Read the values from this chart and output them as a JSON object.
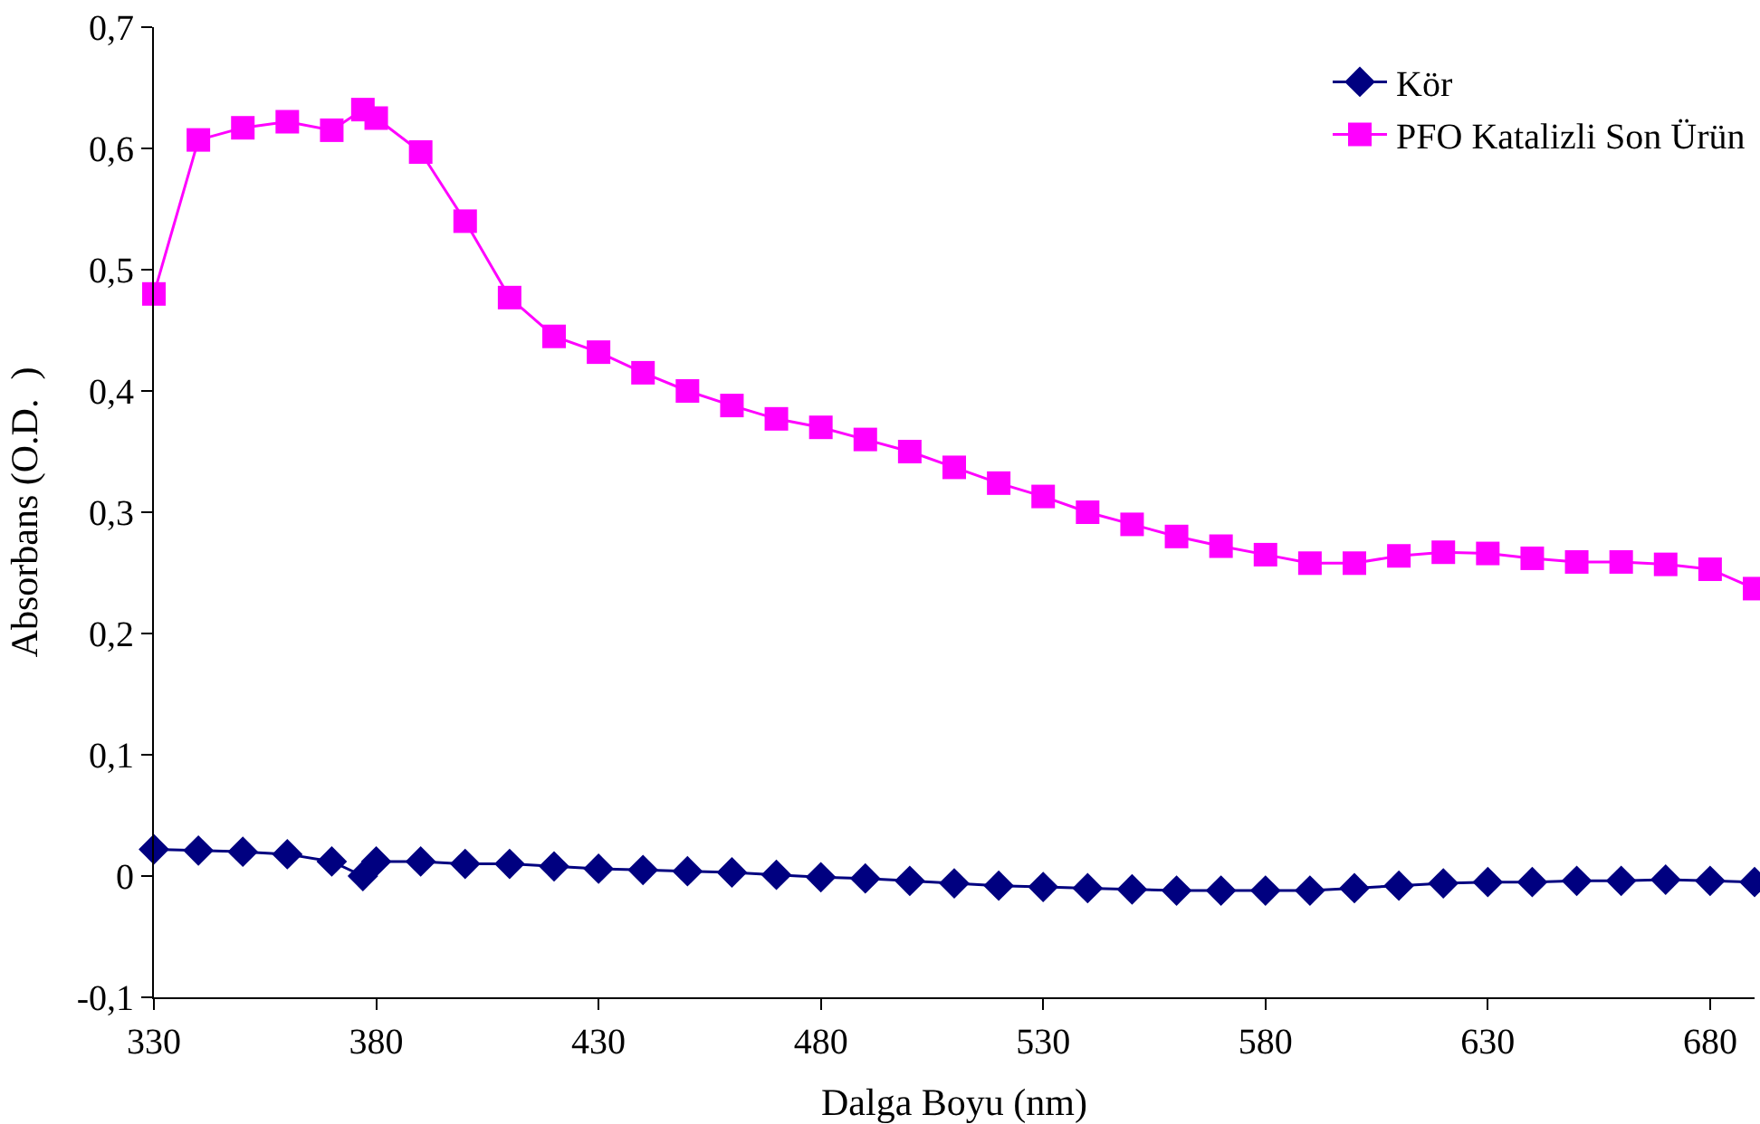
{
  "chart_data": {
    "type": "line",
    "xlabel": "Dalga Boyu (nm)",
    "ylabel": "Absorbans (O.D.  )",
    "x": [
      330,
      340,
      350,
      360,
      370,
      377,
      380,
      390,
      400,
      410,
      420,
      430,
      440,
      450,
      460,
      470,
      480,
      490,
      500,
      510,
      520,
      530,
      540,
      550,
      560,
      570,
      580,
      590,
      600,
      610,
      620,
      630,
      640,
      650,
      660,
      670,
      680,
      690
    ],
    "series": [
      {
        "name": "Kör",
        "color": "#000080",
        "marker": "diamond",
        "values": [
          0.022,
          0.021,
          0.02,
          0.018,
          0.012,
          0.0,
          0.012,
          0.012,
          0.01,
          0.01,
          0.008,
          0.006,
          0.005,
          0.004,
          0.003,
          0.001,
          -0.001,
          -0.002,
          -0.004,
          -0.006,
          -0.008,
          -0.009,
          -0.01,
          -0.011,
          -0.012,
          -0.012,
          -0.012,
          -0.012,
          -0.01,
          -0.008,
          -0.006,
          -0.005,
          -0.005,
          -0.004,
          -0.004,
          -0.003,
          -0.004,
          -0.005
        ]
      },
      {
        "name": "PFO Katalizli Son Ürün",
        "color": "#ff00ff",
        "marker": "square",
        "values": [
          0.48,
          0.607,
          0.617,
          0.622,
          0.615,
          0.632,
          0.625,
          0.597,
          0.54,
          0.477,
          0.445,
          0.432,
          0.415,
          0.4,
          0.388,
          0.377,
          0.37,
          0.36,
          0.35,
          0.337,
          0.324,
          0.313,
          0.3,
          0.29,
          0.28,
          0.272,
          0.265,
          0.258,
          0.258,
          0.264,
          0.267,
          0.266,
          0.262,
          0.259,
          0.259,
          0.257,
          0.253,
          0.237
        ]
      }
    ],
    "xlim": [
      330,
      690
    ],
    "xticks": [
      330,
      380,
      430,
      480,
      530,
      580,
      630,
      680
    ],
    "ylim": [
      -0.1,
      0.7
    ],
    "yticks": [
      {
        "value": -0.1,
        "label": "-0,1"
      },
      {
        "value": 0,
        "label": "0"
      },
      {
        "value": 0.1,
        "label": "0,1"
      },
      {
        "value": 0.2,
        "label": "0,2"
      },
      {
        "value": 0.3,
        "label": "0,3"
      },
      {
        "value": 0.4,
        "label": "0,4"
      },
      {
        "value": 0.5,
        "label": "0,5"
      },
      {
        "value": 0.6,
        "label": "0,6"
      },
      {
        "value": 0.7,
        "label": "0,7"
      }
    ],
    "legend": "top right",
    "line_style": "solid"
  }
}
